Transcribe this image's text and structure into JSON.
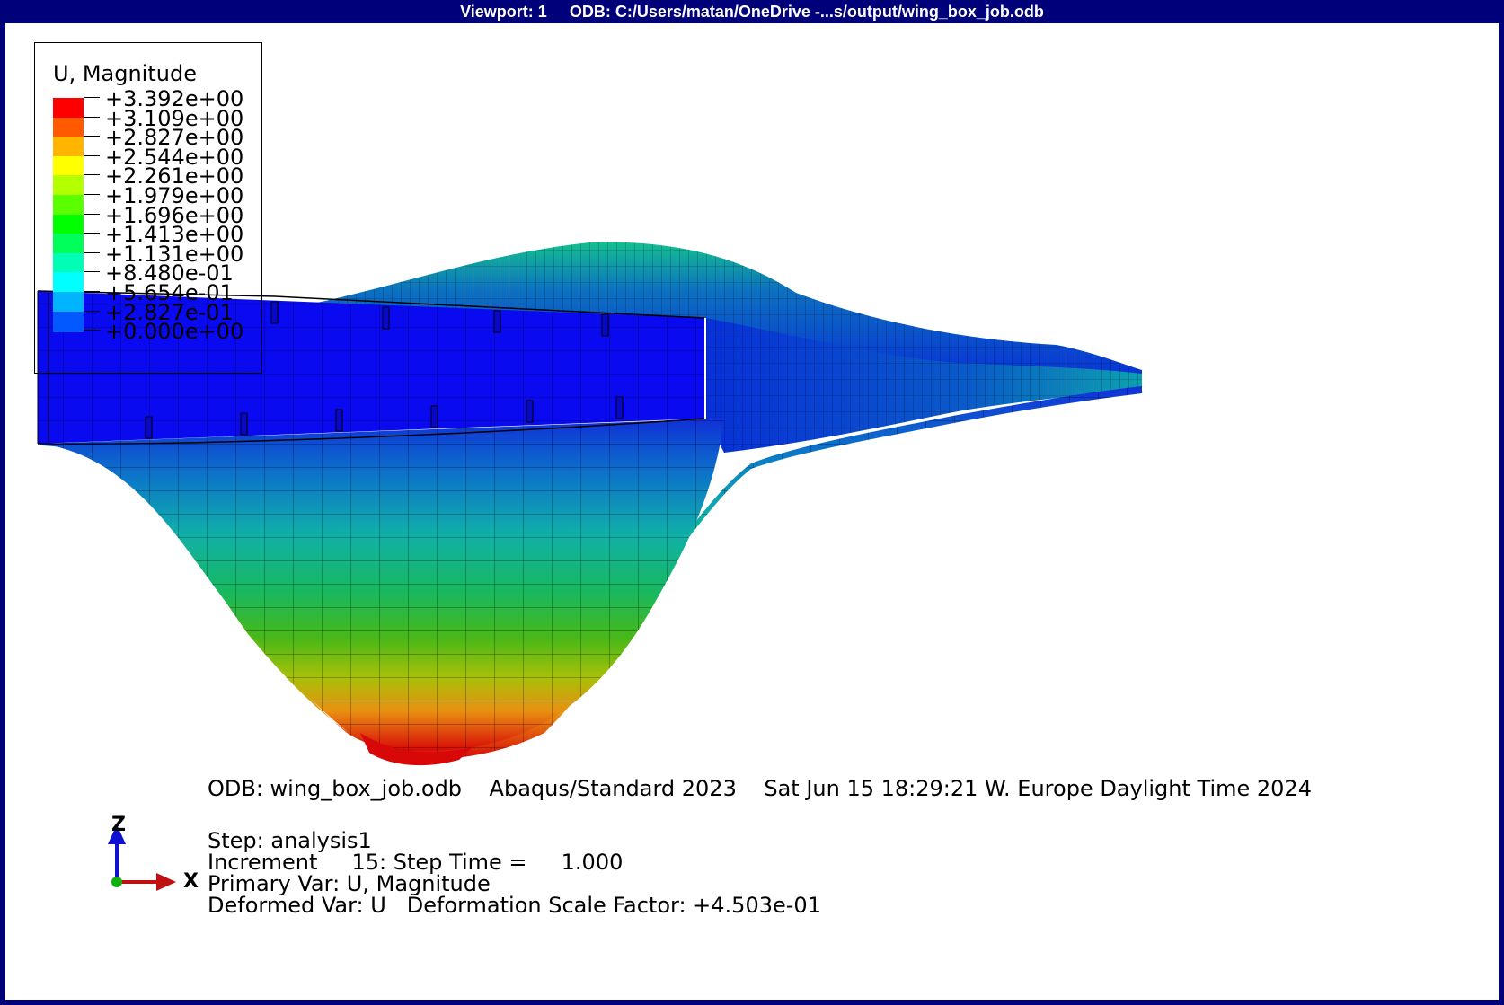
{
  "viewport": {
    "label": "Viewport: 1",
    "odb_path": "ODB: C:/Users/matan/OneDrive -...s/output/wing_box_job.odb"
  },
  "legend": {
    "title": "U, Magnitude",
    "values": [
      "+3.392e+00",
      "+3.109e+00",
      "+2.827e+00",
      "+2.544e+00",
      "+2.261e+00",
      "+1.979e+00",
      "+1.696e+00",
      "+1.413e+00",
      "+1.131e+00",
      "+8.480e-01",
      "+5.654e-01",
      "+2.827e-01",
      "+0.000e+00"
    ],
    "colors": [
      "#ff0000",
      "#ff5a00",
      "#ffb400",
      "#ffff00",
      "#b4ff00",
      "#5aff00",
      "#00ff00",
      "#00ff5a",
      "#00ffb4",
      "#00ffff",
      "#00b4ff",
      "#005aff",
      "#0000ff"
    ]
  },
  "triad": {
    "z_label": "Z",
    "x_label": "X"
  },
  "info": {
    "line1": "ODB: wing_box_job.odb    Abaqus/Standard 2023    Sat Jun 15 18:29:21 W. Europe Daylight Time 2024",
    "step": "Step: analysis1",
    "increment": "Increment     15: Step Time =     1.000",
    "primary_var": "Primary Var: U, Magnitude",
    "deformed_var": "Deformed Var: U   Deformation Scale Factor: +4.503e-01"
  },
  "colors": {
    "frame": "#00007a",
    "canvas": "#ffffff"
  }
}
